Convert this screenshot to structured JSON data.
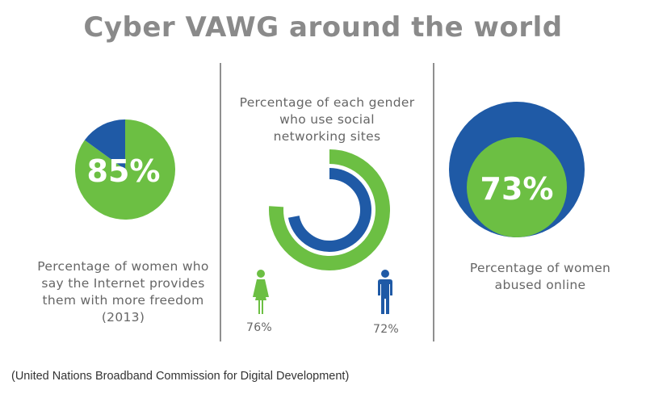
{
  "title": "Cyber VAWG around the world",
  "colors": {
    "green": "#6cbf43",
    "blue": "#1f5aa6",
    "title_gray": "#8a8a8a"
  },
  "source": "(United Nations Broadband Commission for Digital Development)",
  "chart_data": [
    {
      "type": "pie",
      "slices": [
        {
          "label": "85%",
          "value": 85,
          "color": "#6cbf43"
        },
        {
          "value": 15,
          "color": "#1f5aa6"
        }
      ],
      "caption": [
        "Percentage of women who",
        "say the Internet provides",
        "them with more freedom",
        "(2013)"
      ]
    },
    {
      "type": "donut",
      "title": [
        "Percentage of each gender",
        "who use social",
        "networking sites"
      ],
      "series": [
        {
          "value": 76,
          "label": "76%",
          "color": "#6cbf43",
          "icon": "female-icon"
        },
        {
          "value": 72,
          "label": "72%",
          "color": "#1f5aa6",
          "icon": "male-icon"
        }
      ]
    },
    {
      "type": "bubble",
      "value": 73,
      "label": "73%",
      "caption": [
        "Percentage of women",
        "abused online"
      ]
    }
  ]
}
